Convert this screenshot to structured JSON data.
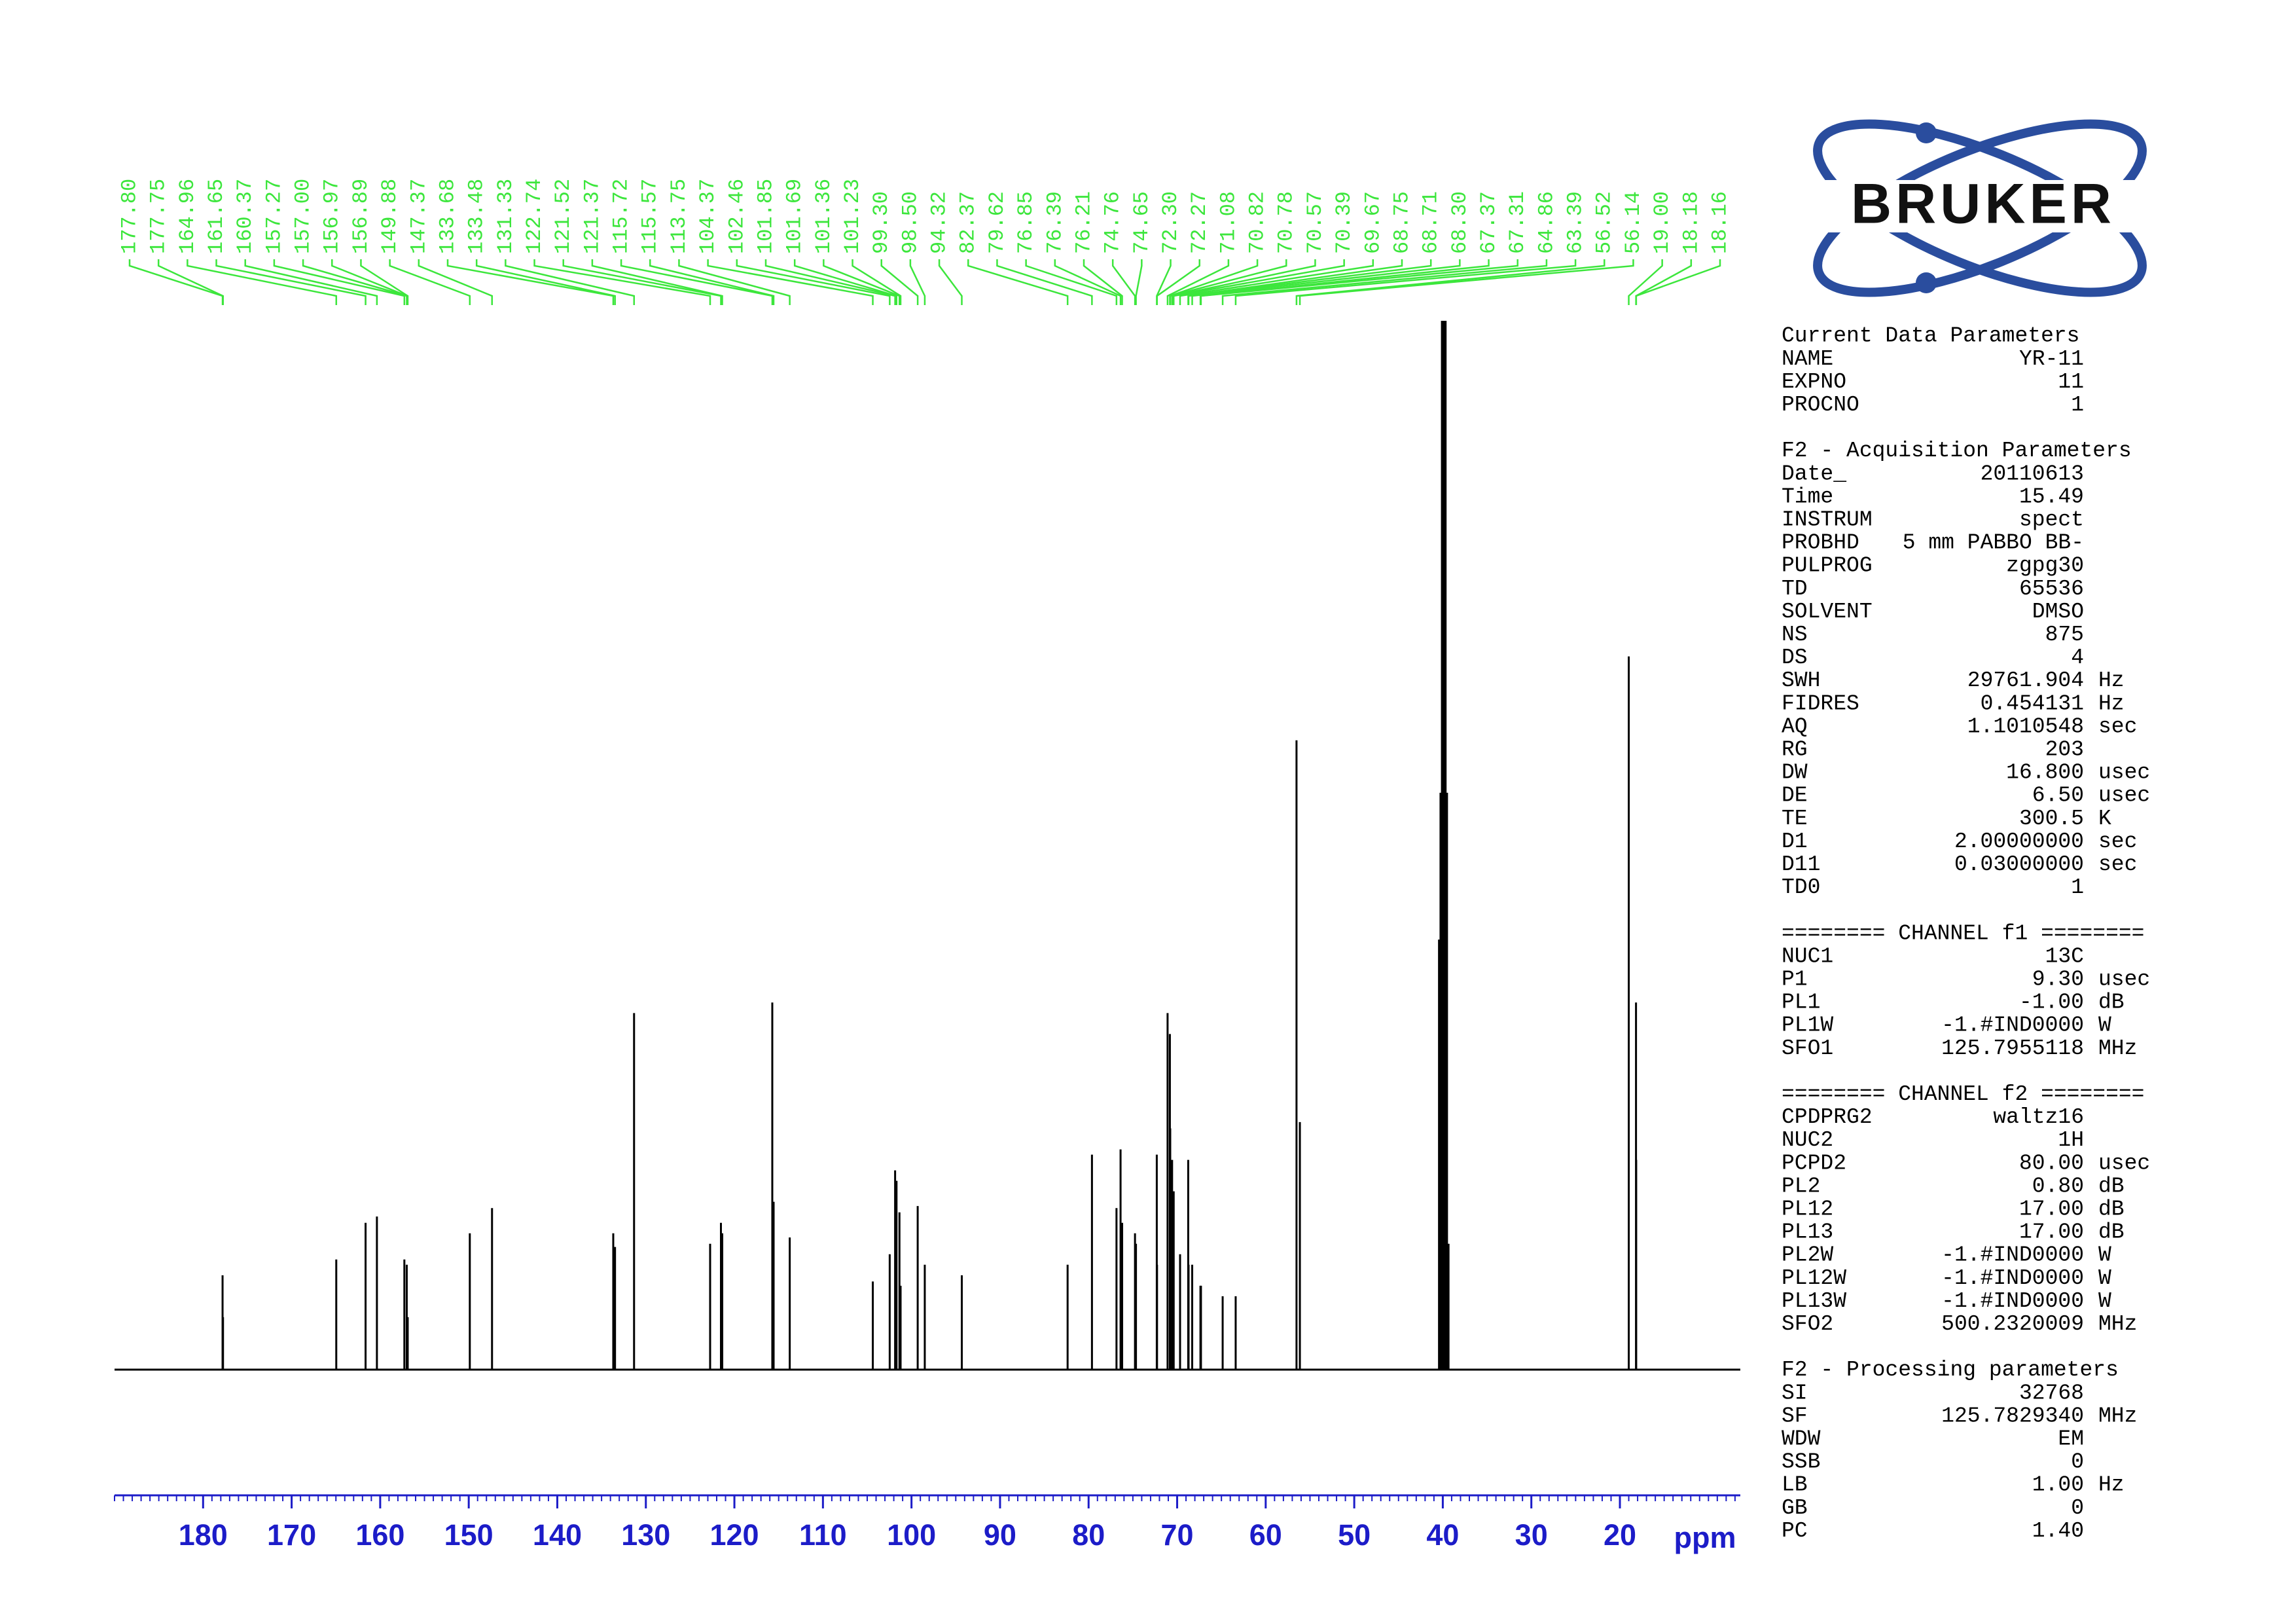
{
  "chart_data": {
    "type": "nmr",
    "xlim": [
      190,
      6.4
    ],
    "ylim": [
      0,
      100
    ],
    "xticks": [
      180,
      170,
      160,
      150,
      140,
      130,
      120,
      110,
      100,
      90,
      80,
      70,
      60,
      50,
      40,
      30,
      20
    ],
    "xminor_step": 1,
    "x_label": "ppm",
    "axis_color": "#1c1cc8",
    "label_color": "#3ce63c",
    "spectrum_color": "#000000",
    "peaks": [
      {
        "value": 177.8,
        "label": "177.80"
      },
      {
        "value": 177.75,
        "label": "177.75"
      },
      {
        "value": 164.96,
        "label": "164.96"
      },
      {
        "value": 161.65,
        "label": "161.65"
      },
      {
        "value": 160.37,
        "label": "160.37"
      },
      {
        "value": 157.27,
        "label": "157.27"
      },
      {
        "value": 157,
        "label": "157.00"
      },
      {
        "value": 156.97,
        "label": "156.97"
      },
      {
        "value": 156.89,
        "label": "156.89"
      },
      {
        "value": 149.88,
        "label": "149.88"
      },
      {
        "value": 147.37,
        "label": "147.37"
      },
      {
        "value": 133.68,
        "label": "133.68"
      },
      {
        "value": 133.48,
        "label": "133.48"
      },
      {
        "value": 131.33,
        "label": "131.33"
      },
      {
        "value": 122.74,
        "label": "122.74"
      },
      {
        "value": 121.52,
        "label": "121.52"
      },
      {
        "value": 121.37,
        "label": "121.37"
      },
      {
        "value": 115.72,
        "label": "115.72"
      },
      {
        "value": 115.57,
        "label": "115.57"
      },
      {
        "value": 113.75,
        "label": "113.75"
      },
      {
        "value": 104.37,
        "label": "104.37"
      },
      {
        "value": 102.46,
        "label": "102.46"
      },
      {
        "value": 101.85,
        "label": "101.85"
      },
      {
        "value": 101.69,
        "label": "101.69"
      },
      {
        "value": 101.36,
        "label": "101.36"
      },
      {
        "value": 101.23,
        "label": "101.23"
      },
      {
        "value": 99.3,
        "label": "99.30"
      },
      {
        "value": 98.5,
        "label": "98.50"
      },
      {
        "value": 94.32,
        "label": "94.32"
      },
      {
        "value": 82.37,
        "label": "82.37"
      },
      {
        "value": 79.62,
        "label": "79.62"
      },
      {
        "value": 76.85,
        "label": "76.85"
      },
      {
        "value": 76.39,
        "label": "76.39"
      },
      {
        "value": 76.21,
        "label": "76.21"
      },
      {
        "value": 74.76,
        "label": "74.76"
      },
      {
        "value": 74.65,
        "label": "74.65"
      },
      {
        "value": 72.3,
        "label": "72.30"
      },
      {
        "value": 72.27,
        "label": "72.27"
      },
      {
        "value": 71.08,
        "label": "71.08"
      },
      {
        "value": 70.82,
        "label": "70.82"
      },
      {
        "value": 70.78,
        "label": "70.78"
      },
      {
        "value": 70.57,
        "label": "70.57"
      },
      {
        "value": 70.39,
        "label": "70.39"
      },
      {
        "value": 69.67,
        "label": "69.67"
      },
      {
        "value": 68.75,
        "label": "68.75"
      },
      {
        "value": 68.71,
        "label": "68.71"
      },
      {
        "value": 68.3,
        "label": "68.30"
      },
      {
        "value": 67.37,
        "label": "67.37"
      },
      {
        "value": 67.31,
        "label": "67.31"
      },
      {
        "value": 64.86,
        "label": "64.86"
      },
      {
        "value": 63.39,
        "label": "63.39"
      },
      {
        "value": 56.52,
        "label": "56.52"
      },
      {
        "value": 56.14,
        "label": "56.14"
      },
      {
        "value": 19,
        "label": "19.00"
      },
      {
        "value": 18.18,
        "label": "18.18"
      },
      {
        "value": 18.16,
        "label": "18.16"
      }
    ],
    "peak_heights": [
      9,
      5,
      10.5,
      14,
      14.6,
      10.5,
      10,
      5,
      5,
      13,
      15.4,
      13,
      11.7,
      34,
      12,
      14,
      13,
      35,
      16,
      12.6,
      8.4,
      11,
      19,
      18,
      15,
      8,
      15.6,
      10,
      9,
      10,
      20.5,
      15.4,
      21,
      14,
      13,
      12,
      20.5,
      10,
      34,
      32,
      23,
      20,
      17,
      11,
      20,
      10,
      10,
      8,
      8,
      7,
      7,
      60,
      23.6,
      68,
      35,
      20
    ],
    "solvent_peaks": {
      "ppm": [
        40.39,
        40.22,
        40.06,
        39.89,
        39.72,
        39.56,
        39.39
      ],
      "heights": [
        41,
        55,
        110,
        130,
        110,
        55,
        12
      ]
    }
  },
  "logo": "BRUKER",
  "parameters": [
    {
      "title": "Current Data Parameters",
      "rows": [
        [
          "NAME",
          "YR-11"
        ],
        [
          "EXPNO",
          "11"
        ],
        [
          "PROCNO",
          "1"
        ]
      ]
    },
    {
      "title": "F2 - Acquisition Parameters",
      "rows": [
        [
          "Date_",
          "20110613"
        ],
        [
          "Time",
          "15.49"
        ],
        [
          "INSTRUM",
          "spect"
        ],
        [
          "PROBHD",
          "5 mm PABBO BB-"
        ],
        [
          "PULPROG",
          "zgpg30"
        ],
        [
          "TD",
          "65536"
        ],
        [
          "SOLVENT",
          "DMSO"
        ],
        [
          "NS",
          "875"
        ],
        [
          "DS",
          "4"
        ],
        [
          "SWH",
          "29761.904",
          "Hz"
        ],
        [
          "FIDRES",
          "0.454131",
          "Hz"
        ],
        [
          "AQ",
          "1.1010548",
          "sec"
        ],
        [
          "RG",
          "203"
        ],
        [
          "DW",
          "16.800",
          "usec"
        ],
        [
          "DE",
          "6.50",
          "usec"
        ],
        [
          "TE",
          "300.5",
          "K"
        ],
        [
          "D1",
          "2.00000000",
          "sec"
        ],
        [
          "D11",
          "0.03000000",
          "sec"
        ],
        [
          "TD0",
          "1"
        ]
      ]
    },
    {
      "title": "======== CHANNEL f1 ========",
      "rows": [
        [
          "NUC1",
          "13C"
        ],
        [
          "P1",
          "9.30",
          "usec"
        ],
        [
          "PL1",
          "-1.00",
          "dB"
        ],
        [
          "PL1W",
          "-1.#IND0000",
          "W"
        ],
        [
          "SFO1",
          "125.7955118",
          "MHz"
        ]
      ]
    },
    {
      "title": "======== CHANNEL f2 ========",
      "rows": [
        [
          "CPDPRG2",
          "waltz16"
        ],
        [
          "NUC2",
          "1H"
        ],
        [
          "PCPD2",
          "80.00",
          "usec"
        ],
        [
          "PL2",
          "0.80",
          "dB"
        ],
        [
          "PL12",
          "17.00",
          "dB"
        ],
        [
          "PL13",
          "17.00",
          "dB"
        ],
        [
          "PL2W",
          "-1.#IND0000",
          "W"
        ],
        [
          "PL12W",
          "-1.#IND0000",
          "W"
        ],
        [
          "PL13W",
          "-1.#IND0000",
          "W"
        ],
        [
          "SFO2",
          "500.2320009",
          "MHz"
        ]
      ]
    },
    {
      "title": "F2 - Processing parameters",
      "rows": [
        [
          "SI",
          "32768"
        ],
        [
          "SF",
          "125.7829340",
          "MHz"
        ],
        [
          "WDW",
          "EM"
        ],
        [
          "SSB",
          "0"
        ],
        [
          "LB",
          "1.00",
          "Hz"
        ],
        [
          "GB",
          "0"
        ],
        [
          "PC",
          "1.40"
        ]
      ]
    }
  ]
}
